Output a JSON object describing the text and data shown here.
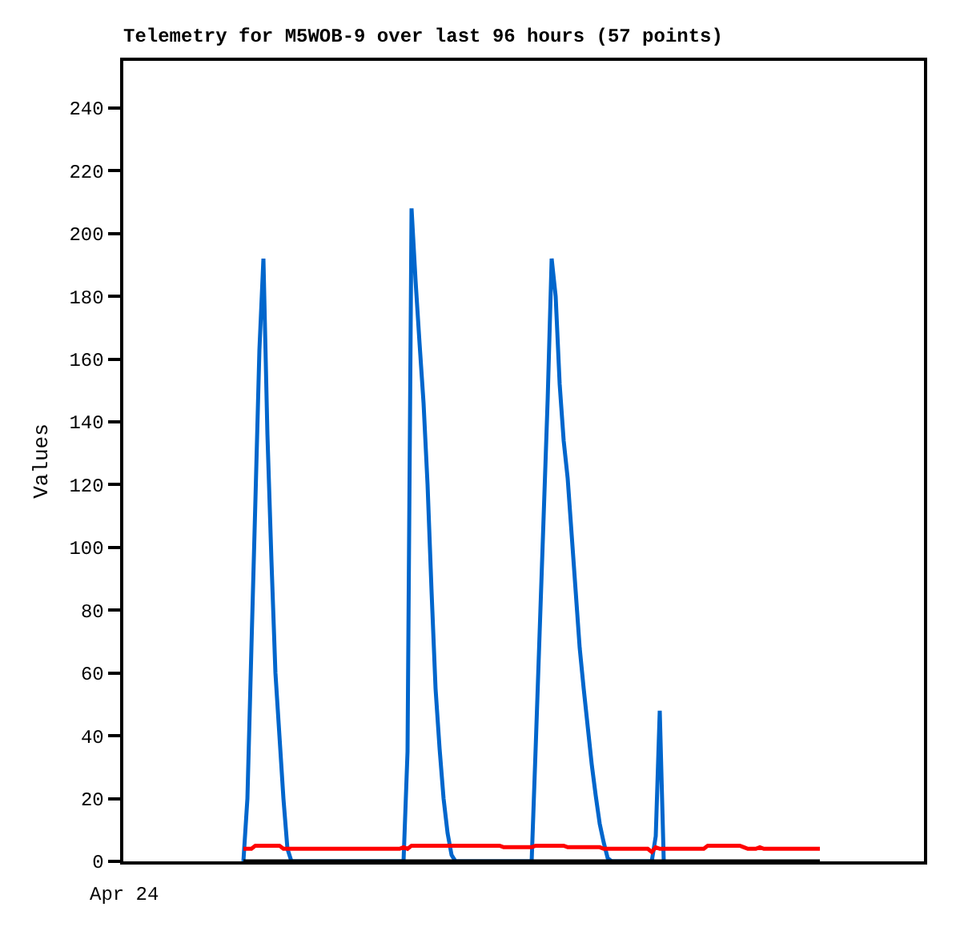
{
  "chart_data": {
    "type": "line",
    "title": "Telemetry for M5WOB-9 over last 96 hours (57 points)",
    "ylabel": "Values",
    "annotations": [
      "Apr 24"
    ],
    "categories": [
      null,
      null,
      null,
      null,
      null,
      null,
      null,
      null,
      null,
      null,
      null,
      null,
      null,
      null,
      null,
      null,
      null,
      null,
      null,
      null,
      null,
      null,
      null,
      null,
      null,
      null,
      null,
      null,
      null,
      null,
      null,
      null,
      null,
      null,
      null,
      null,
      null,
      null,
      null,
      null,
      null,
      null,
      null,
      null,
      null,
      null,
      null,
      null,
      null,
      null,
      null,
      null,
      null,
      null,
      null,
      null,
      null,
      null,
      null,
      null,
      null,
      null,
      null,
      null,
      null,
      null,
      null,
      null,
      null,
      null,
      null,
      null,
      null,
      null,
      null,
      null,
      null,
      null,
      null,
      null,
      null,
      null,
      null,
      null,
      null,
      null,
      null,
      null,
      null,
      null,
      null,
      null,
      null,
      null,
      null,
      null,
      null,
      null,
      null,
      null,
      null,
      null,
      null,
      null,
      null,
      null,
      null,
      null,
      null,
      null,
      null,
      null,
      null,
      null,
      null,
      null,
      null,
      null,
      null,
      null,
      null,
      null,
      null,
      null,
      null,
      null,
      null,
      null,
      null,
      null,
      null,
      null,
      null,
      null,
      null,
      null,
      null,
      null,
      null,
      null,
      null,
      null,
      null,
      null,
      null,
      null,
      null,
      null,
      null,
      null,
      null,
      null,
      null,
      null,
      null,
      null,
      null,
      null,
      null,
      null,
      null,
      null,
      null,
      null,
      null,
      null,
      null,
      null,
      null,
      null,
      null,
      null,
      null,
      null,
      null,
      null,
      null,
      null,
      null,
      null,
      null,
      null,
      null,
      null,
      null,
      null,
      null,
      null,
      null,
      null,
      null,
      null,
      null,
      null,
      null,
      null,
      null,
      null,
      null,
      null,
      null
    ],
    "ylim": [
      0,
      255
    ],
    "yticks": [
      0,
      20,
      40,
      60,
      80,
      100,
      120,
      140,
      160,
      180,
      200,
      220,
      240
    ],
    "grid": false,
    "marker": "none",
    "line_style": "solid",
    "series": [
      {
        "color": "#0066cc",
        "values": [
          null,
          null,
          null,
          null,
          null,
          null,
          null,
          null,
          null,
          null,
          null,
          null,
          null,
          null,
          null,
          null,
          null,
          null,
          null,
          null,
          null,
          null,
          null,
          null,
          null,
          null,
          null,
          null,
          null,
          null,
          0,
          20,
          68,
          115,
          163,
          192,
          136,
          96,
          60,
          40,
          20,
          4,
          0,
          0,
          0,
          0,
          0,
          0,
          0,
          0,
          0,
          0,
          0,
          0,
          0,
          0,
          0,
          0,
          0,
          0,
          0,
          0,
          0,
          0,
          0,
          0,
          0,
          0,
          0,
          0,
          0,
          35,
          208,
          185,
          165,
          146,
          120,
          86,
          55,
          36,
          20,
          9,
          2,
          0,
          0,
          0,
          0,
          0,
          0,
          0,
          0,
          0,
          0,
          0,
          0,
          0,
          0,
          0,
          0,
          0,
          0,
          0,
          0,
          36,
          73,
          110,
          147,
          192,
          180,
          152,
          134,
          122,
          104,
          86,
          68,
          55,
          43,
          31,
          21,
          12,
          6,
          1,
          0,
          0,
          0,
          0,
          0,
          0,
          0,
          0,
          0,
          0,
          0,
          8,
          48,
          0,
          null,
          null,
          null,
          null,
          null,
          null,
          null,
          null,
          null,
          null,
          null,
          null,
          null,
          null,
          null,
          null,
          null,
          null,
          null,
          null,
          null,
          null,
          null,
          null,
          null,
          null,
          null,
          null,
          null,
          null,
          null,
          null,
          null,
          null,
          null,
          null,
          null,
          null,
          null,
          null,
          null,
          null,
          null,
          null,
          null,
          null,
          null,
          null,
          null,
          null,
          null,
          null,
          null,
          null,
          null,
          null,
          null,
          null,
          null,
          null,
          null,
          null,
          null,
          null,
          null
        ]
      },
      {
        "color": "#ff0000",
        "values": [
          null,
          null,
          null,
          null,
          null,
          null,
          null,
          null,
          null,
          null,
          null,
          null,
          null,
          null,
          null,
          null,
          null,
          null,
          null,
          null,
          null,
          null,
          null,
          null,
          null,
          null,
          null,
          null,
          null,
          null,
          4,
          4,
          4,
          5,
          5,
          5,
          5,
          5,
          5,
          5,
          4,
          4,
          4,
          4,
          4,
          4,
          4,
          4,
          4,
          4,
          4,
          4,
          4,
          4,
          4,
          4,
          4,
          4,
          4,
          4,
          4,
          4,
          4,
          4,
          4,
          4,
          4,
          4,
          4,
          4,
          4.5,
          4,
          5,
          5,
          5,
          5,
          5,
          5,
          5,
          5,
          5,
          5,
          5,
          5,
          5,
          5,
          5,
          5,
          5,
          5,
          5,
          5,
          5,
          5,
          5,
          4.5,
          4.5,
          4.5,
          4.5,
          4.5,
          4.5,
          4.5,
          4.5,
          5,
          5,
          5,
          5,
          5,
          5,
          5,
          5,
          4.5,
          4.5,
          4.5,
          4.5,
          4.5,
          4.5,
          4.5,
          4.5,
          4.5,
          4,
          4,
          4,
          4,
          4,
          4,
          4,
          4,
          4,
          4,
          4,
          4,
          3,
          4.5,
          4,
          4,
          4,
          4,
          4,
          4,
          4,
          4,
          4,
          4,
          4,
          4,
          5,
          5,
          5,
          5,
          5,
          5,
          5,
          5,
          5,
          4.5,
          4,
          4,
          4,
          4.5,
          4,
          4,
          4,
          4,
          4,
          4,
          4,
          4,
          4,
          4,
          4,
          4,
          4,
          4,
          4,
          null,
          null,
          null,
          null,
          null,
          null,
          null,
          null,
          null,
          null,
          null,
          null,
          null,
          null,
          null,
          null,
          null,
          null,
          null,
          null,
          null,
          null,
          null,
          null,
          null,
          null
        ]
      },
      {
        "color": "#000000",
        "values": [
          null,
          null,
          null,
          null,
          null,
          null,
          null,
          null,
          null,
          null,
          null,
          null,
          null,
          null,
          null,
          null,
          null,
          null,
          null,
          null,
          null,
          null,
          null,
          null,
          null,
          null,
          null,
          null,
          null,
          null,
          0,
          0,
          0,
          0,
          0,
          0,
          0,
          0,
          0,
          0,
          0,
          0,
          0,
          0,
          0,
          0,
          0,
          0,
          0,
          0,
          0,
          0,
          0,
          0,
          0,
          0,
          0,
          0,
          0,
          0,
          0,
          0,
          0,
          0,
          0,
          0,
          0,
          0,
          0,
          0,
          0,
          0,
          0,
          0,
          0,
          0,
          0,
          0,
          0,
          0,
          0,
          0,
          0,
          0,
          0,
          0,
          0,
          0,
          0,
          0,
          0,
          0,
          0,
          0,
          0,
          0,
          0,
          0,
          0,
          0,
          0,
          0,
          0,
          0,
          0,
          0,
          0,
          0,
          0,
          0,
          0,
          0,
          0,
          0,
          0,
          0,
          0,
          0,
          0,
          0,
          0,
          0,
          0,
          0,
          0,
          0,
          0,
          0,
          0,
          0,
          0,
          0,
          0,
          0,
          0,
          0,
          0,
          0,
          0,
          0,
          0,
          0,
          0,
          0,
          0,
          0,
          0,
          0,
          0,
          0,
          0,
          0,
          0,
          0,
          0,
          0,
          0,
          0,
          0,
          0,
          0,
          0,
          0,
          0,
          0,
          0,
          0,
          0,
          0,
          0,
          0,
          0,
          0,
          0,
          0,
          null,
          null,
          null,
          null,
          null,
          null,
          null,
          null,
          null,
          null,
          null,
          null,
          null,
          null,
          null,
          null,
          null,
          null,
          null,
          null,
          null,
          null,
          null,
          null,
          null,
          null
        ]
      }
    ]
  }
}
